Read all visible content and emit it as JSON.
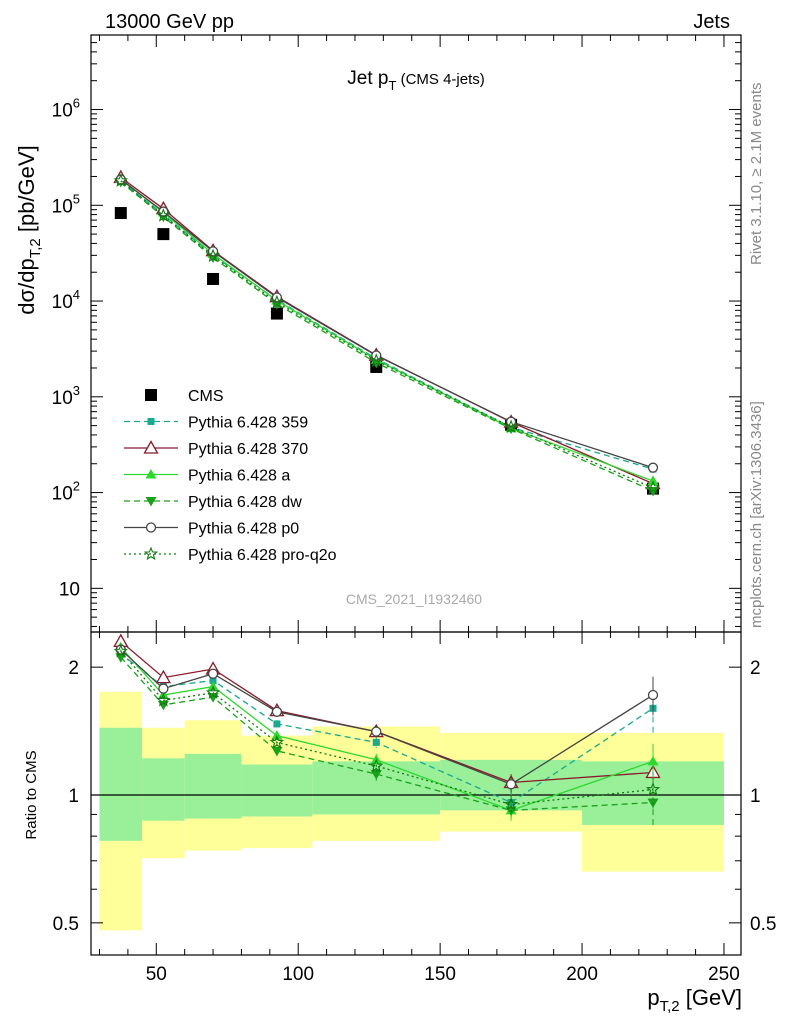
{
  "header": {
    "left": "13000 GeV pp",
    "right": "Jets"
  },
  "side_labels": {
    "rivet": "Rivet 3.1.10, ≥ 2.1M events",
    "mcplots": "mcplots.cern.ch [arXiv:1306.3436]"
  },
  "colors": {
    "CMS": "#000000",
    "Pythia 6.428 359": "#19a98f",
    "Pythia 6.428 370": "#8b1a2b",
    "Pythia 6.428 a": "#2ed82e",
    "Pythia 6.428 dw": "#1aa11a",
    "Pythia 6.428 p0": "#444444",
    "Pythia 6.428 pro-q2o": "#117a11",
    "band_stat": "#99f099",
    "band_total": "#ffff99"
  },
  "chart_data": [
    {
      "type": "scatter",
      "panel": "main",
      "title": "Jet p_T",
      "title_note": "(CMS 4-jets)",
      "watermark": "CMS_2021_I1932460",
      "xlabel": "p_T,2 [GeV]",
      "ylabel": "dσ/dp_T,2 [pb/GeV]",
      "yscale": "log",
      "xlim": [
        27,
        256
      ],
      "ylim": [
        3.5,
        6000000
      ],
      "y_ticks": [
        10,
        100,
        1000,
        10000,
        100000,
        1000000
      ],
      "y_tick_labels": [
        "10",
        "10^2",
        "10^3",
        "10^4",
        "10^5",
        "10^6"
      ],
      "x": [
        37.5,
        52.5,
        70,
        92.5,
        127.5,
        175,
        225
      ],
      "legend_position": "lower-left",
      "series": [
        {
          "name": "CMS",
          "marker": "square",
          "line": "none",
          "values": [
            83000,
            50000,
            17000,
            7400,
            2050,
            510,
            110
          ],
          "yerr_rel": [
            0.05,
            0.05,
            0.05,
            0.05,
            0.06,
            0.07,
            0.12
          ]
        },
        {
          "name": "Pythia 6.428 359",
          "marker": "square-small",
          "line": "dashed",
          "values": [
            180000,
            80000,
            30000,
            10300,
            2500,
            480,
            176
          ]
        },
        {
          "name": "Pythia 6.428 370",
          "marker": "triangle-open",
          "line": "solid",
          "values": [
            195000,
            92000,
            33500,
            11100,
            2720,
            545,
            124
          ]
        },
        {
          "name": "Pythia 6.428 a",
          "marker": "triangle",
          "line": "solid",
          "values": [
            188000,
            84000,
            31000,
            10100,
            2440,
            470,
            132
          ]
        },
        {
          "name": "Pythia 6.428 dw",
          "marker": "triangle-down",
          "line": "dashed",
          "values": [
            175000,
            76000,
            28500,
            9300,
            2270,
            465,
            104
          ]
        },
        {
          "name": "Pythia 6.428 p0",
          "marker": "circle-open",
          "line": "solid",
          "values": [
            186000,
            86000,
            33000,
            10900,
            2700,
            550,
            182
          ]
        },
        {
          "name": "Pythia 6.428 pro-q2o",
          "marker": "star-open",
          "line": "dotted",
          "values": [
            180000,
            78000,
            29500,
            9700,
            2380,
            485,
            112
          ]
        }
      ]
    },
    {
      "type": "line",
      "panel": "ratio",
      "ylabel": "Ratio to CMS",
      "yscale": "log",
      "xlim": [
        27,
        256
      ],
      "ylim": [
        0.42,
        2.42
      ],
      "y_ticks": [
        0.5,
        1,
        2
      ],
      "y_tick_labels": [
        "0.5",
        "1",
        "2"
      ],
      "x_ticks": [
        50,
        100,
        150,
        200,
        250
      ],
      "x_tick_labels": [
        "50",
        "100",
        "150",
        "200",
        "250"
      ],
      "x": [
        37.5,
        52.5,
        70,
        92.5,
        127.5,
        175,
        225
      ],
      "bins": [
        [
          30,
          45
        ],
        [
          45,
          60
        ],
        [
          60,
          80
        ],
        [
          80,
          105
        ],
        [
          105,
          150
        ],
        [
          150,
          200
        ],
        [
          200,
          250
        ]
      ],
      "band_total": [
        [
          0.48,
          1.75
        ],
        [
          0.71,
          1.44
        ],
        [
          0.74,
          1.5
        ],
        [
          0.75,
          1.38
        ],
        [
          0.78,
          1.45
        ],
        [
          0.82,
          1.4
        ],
        [
          0.66,
          1.4
        ]
      ],
      "band_stat": [
        [
          0.78,
          1.44
        ],
        [
          0.87,
          1.22
        ],
        [
          0.88,
          1.25
        ],
        [
          0.89,
          1.18
        ],
        [
          0.9,
          1.2
        ],
        [
          0.92,
          1.21
        ],
        [
          0.85,
          1.2
        ]
      ],
      "series": [
        {
          "name": "Pythia 6.428 359",
          "values": [
            2.15,
            1.8,
            1.86,
            1.47,
            1.33,
            0.96,
            1.6
          ]
        },
        {
          "name": "Pythia 6.428 370",
          "values": [
            2.3,
            1.89,
            1.98,
            1.58,
            1.41,
            1.07,
            1.13
          ]
        },
        {
          "name": "Pythia 6.428 a",
          "values": [
            2.23,
            1.72,
            1.8,
            1.38,
            1.21,
            0.92,
            1.2
          ]
        },
        {
          "name": "Pythia 6.428 dw",
          "values": [
            2.11,
            1.63,
            1.7,
            1.27,
            1.12,
            0.92,
            0.96
          ]
        },
        {
          "name": "Pythia 6.428 p0",
          "values": [
            2.2,
            1.78,
            1.93,
            1.57,
            1.41,
            1.06,
            1.72
          ]
        },
        {
          "name": "Pythia 6.428 pro-q2o",
          "values": [
            2.18,
            1.67,
            1.74,
            1.33,
            1.17,
            0.95,
            1.03
          ]
        }
      ],
      "err": {
        "Pythia 6.428 359": [
          0.02,
          0.03,
          0.03,
          0.03,
          0.04,
          0.05,
          0.2
        ],
        "Pythia 6.428 370": [
          0.02,
          0.03,
          0.03,
          0.03,
          0.04,
          0.05,
          0.05
        ],
        "Pythia 6.428 a": [
          0.02,
          0.03,
          0.03,
          0.03,
          0.04,
          0.05,
          0.12
        ],
        "Pythia 6.428 dw": [
          0.02,
          0.03,
          0.03,
          0.03,
          0.04,
          0.05,
          0.13
        ],
        "Pythia 6.428 p0": [
          0.02,
          0.03,
          0.03,
          0.03,
          0.04,
          0.05,
          0.18
        ],
        "Pythia 6.428 pro-q2o": [
          0.02,
          0.03,
          0.03,
          0.03,
          0.04,
          0.05,
          0.1
        ]
      }
    }
  ]
}
